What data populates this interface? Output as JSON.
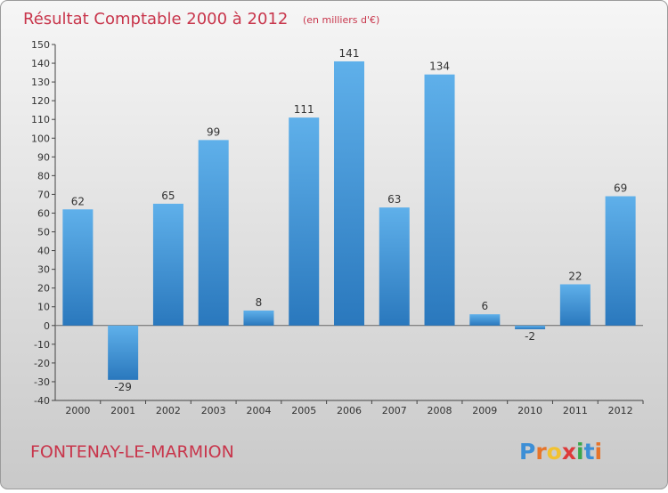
{
  "title": "Résultat Comptable 2000 à 2012",
  "subtitle": "(en milliers d'€)",
  "place": "FONTENAY-LE-MARMION",
  "brand": {
    "letters": [
      "P",
      "r",
      "o",
      "x",
      "i",
      "t",
      "i"
    ],
    "colors": [
      "#3d8fd6",
      "#e6742a",
      "#f2c230",
      "#dd3a3a",
      "#3aa64c",
      "#3d8fd6",
      "#e6742a"
    ]
  },
  "colors": {
    "bar_top": "#5fb0ea",
    "bar_bottom": "#2a78bd",
    "title": "#c8354b",
    "place": "#c8354b",
    "axis_text": "#333333"
  },
  "chart_data": {
    "type": "bar",
    "title": "Résultat Comptable 2000 à 2012",
    "subtitle": "(en milliers d'€)",
    "xlabel": "",
    "ylabel": "",
    "categories": [
      "2000",
      "2001",
      "2002",
      "2003",
      "2004",
      "2005",
      "2006",
      "2007",
      "2008",
      "2009",
      "2010",
      "2011",
      "2012"
    ],
    "values": [
      62,
      -29,
      65,
      99,
      8,
      111,
      141,
      63,
      134,
      6,
      -2,
      22,
      69
    ],
    "ylim": [
      -40,
      150
    ],
    "yticks": [
      -40,
      -30,
      -20,
      -10,
      0,
      10,
      20,
      30,
      40,
      50,
      60,
      70,
      80,
      90,
      100,
      110,
      120,
      130,
      140,
      150
    ],
    "grid": false,
    "legend": "none"
  }
}
